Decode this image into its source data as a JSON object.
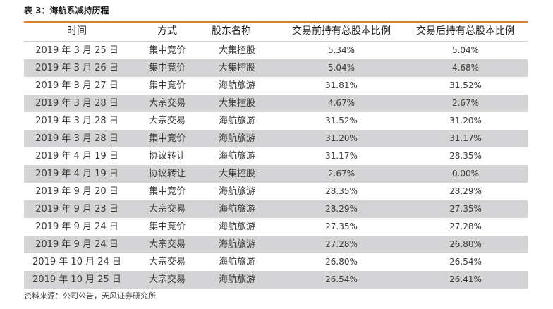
{
  "caption": "表 3：海航系减持历程",
  "headers": {
    "time": "时间",
    "method": "方式",
    "holder": "股东名称",
    "before": "交易前持有总股本比例",
    "after": "交易后持有总股本比例"
  },
  "rows": [
    {
      "time": "2019 年 3 月 25 日",
      "method": "集中竞价",
      "holder": "大集控股",
      "before": "5.34%",
      "after": "5.04%"
    },
    {
      "time": "2019 年 3 月 26 日",
      "method": "集中竞价",
      "holder": "大集控股",
      "before": "5.04%",
      "after": "4.68%"
    },
    {
      "time": "2019 年 3 月 27 日",
      "method": "集中竞价",
      "holder": "海航旅游",
      "before": "31.81%",
      "after": "31.52%"
    },
    {
      "time": "2019 年 3 月 28 日",
      "method": "大宗交易",
      "holder": "大集控股",
      "before": "4.67%",
      "after": "2.67%"
    },
    {
      "time": "2019 年 3 月 28 日",
      "method": "大宗交易",
      "holder": "海航旅游",
      "before": "31.52%",
      "after": "31.20%"
    },
    {
      "time": "2019 年 3 月 28 日",
      "method": "集中竞价",
      "holder": "海航旅游",
      "before": "31.20%",
      "after": "31.17%"
    },
    {
      "time": "2019 年 4 月 19 日",
      "method": "协议转让",
      "holder": "海航旅游",
      "before": "31.17%",
      "after": "28.35%"
    },
    {
      "time": "2019 年 4 月 19 日",
      "method": "协议转让",
      "holder": "大集控股",
      "before": "2.67%",
      "after": "0.00%"
    },
    {
      "time": "2019 年 9 月 20 日",
      "method": "集中竞价",
      "holder": "海航旅游",
      "before": "28.35%",
      "after": "28.29%"
    },
    {
      "time": "2019 年 9 月 23 日",
      "method": "大宗交易",
      "holder": "海航旅游",
      "before": "28.29%",
      "after": "27.35%"
    },
    {
      "time": "2019 年 9 月 24 日",
      "method": "集中竞价",
      "holder": "海航旅游",
      "before": "27.35%",
      "after": "27.28%"
    },
    {
      "time": "2019 年 9 月 24 日",
      "method": "大宗交易",
      "holder": "海航旅游",
      "before": "27.28%",
      "after": "26.80%"
    },
    {
      "time": "2019 年 10 月 24 日",
      "method": "大宗交易",
      "holder": "海航旅游",
      "before": "26.80%",
      "after": "26.54%"
    },
    {
      "time": "2019 年 10 月 25 日",
      "method": "大宗交易",
      "holder": "海航旅游",
      "before": "26.54%",
      "after": "26.41%"
    }
  ],
  "source": "资料来源：公司公告，天风证券研究所",
  "colors": {
    "rule": "#d9822b",
    "shade": "#d4d4d6"
  }
}
